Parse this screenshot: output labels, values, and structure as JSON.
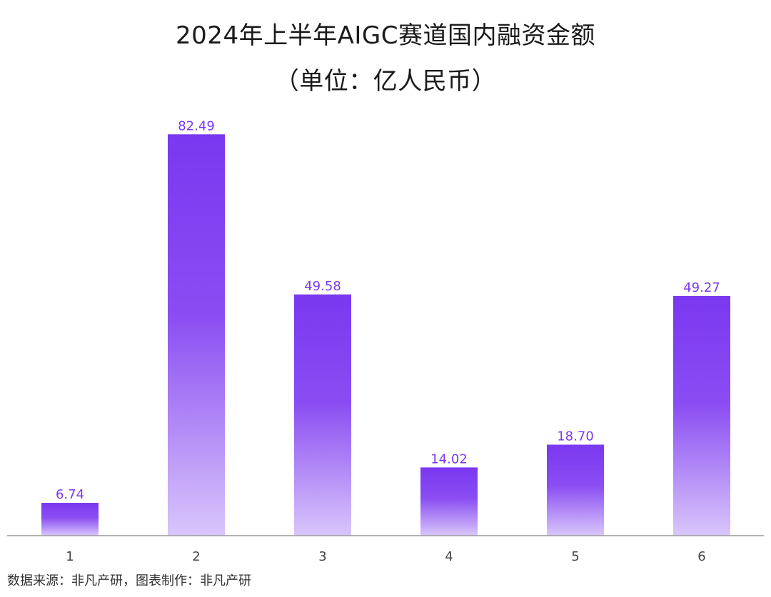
{
  "chart_data": {
    "type": "bar",
    "title": "2024年上半年AIGC赛道国内融资金额",
    "subtitle": "（单位：亿人民币）",
    "categories": [
      "1",
      "2",
      "3",
      "4",
      "5",
      "6"
    ],
    "values": [
      6.74,
      82.49,
      49.58,
      14.02,
      18.7,
      49.27
    ],
    "value_labels": [
      "6.74",
      "82.49",
      "49.58",
      "14.02",
      "18.70",
      "49.27"
    ],
    "ylim": [
      0,
      84
    ],
    "grid": false,
    "legend": "none",
    "colors": {
      "bar_top": "#7a38f0",
      "bar_bottom": "#d9c6fb",
      "label": "#7a38f0",
      "axis": "#9a9a9a"
    }
  },
  "footer": {
    "source": "数据来源：非凡产研，图表制作：非凡产研"
  }
}
